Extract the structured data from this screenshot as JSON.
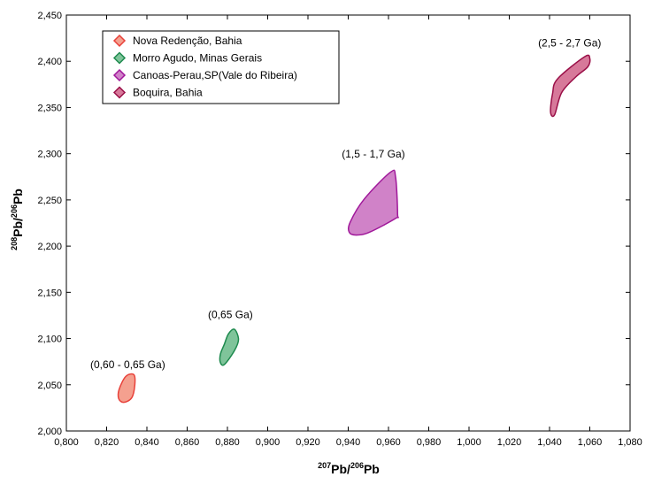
{
  "chart_data": {
    "type": "scatter",
    "x_axis": {
      "title_parts": [
        "207",
        "Pb/",
        "206",
        "Pb"
      ],
      "min": 0.8,
      "max": 1.08,
      "step": 0.02,
      "tick_labels": [
        "0,800",
        "0,820",
        "0,840",
        "0,860",
        "0,880",
        "0,900",
        "0,920",
        "0,940",
        "0,960",
        "0,980",
        "1,000",
        "1,020",
        "1,040",
        "1,060",
        "1,080"
      ]
    },
    "y_axis": {
      "title_parts": [
        "208",
        "Pb/",
        "206",
        "Pb"
      ],
      "min": 2.0,
      "max": 2.45,
      "step": 0.05,
      "tick_labels": [
        "2,000",
        "2,050",
        "2,100",
        "2,150",
        "2,200",
        "2,250",
        "2,300",
        "2,350",
        "2,400",
        "2,450"
      ]
    },
    "grid": false,
    "legend": {
      "placement": "top-left",
      "entries": [
        {
          "name": "Nova Redenção, Bahia",
          "color": "#e8413a",
          "fill": "#f4a08f"
        },
        {
          "name": "Morro Agudo, Minas Gerais",
          "color": "#1e8a4e",
          "fill": "#7fc49a"
        },
        {
          "name": "Canoas-Perau,SP(Vale do Ribeira)",
          "color": "#a0189a",
          "fill": "#d082c8"
        },
        {
          "name": "Boquira, Bahia",
          "color": "#9a1048",
          "fill": "#d7799a"
        }
      ]
    },
    "series": [
      {
        "name": "Nova Redenção, Bahia",
        "label": "(0,60 - 0,65 Ga)",
        "label_at": [
          0.8305,
          2.068
        ],
        "outline": [
          [
            0.8295,
            2.059
          ],
          [
            0.8335,
            2.061
          ],
          [
            0.834,
            2.05
          ],
          [
            0.8325,
            2.036
          ],
          [
            0.8285,
            2.031
          ],
          [
            0.826,
            2.035
          ],
          [
            0.8262,
            2.045
          ]
        ]
      },
      {
        "name": "Morro Agudo, Minas Gerais",
        "label": "(0,65 Ga)",
        "label_at": [
          0.8815,
          2.122
        ],
        "outline": [
          [
            0.8805,
            2.105
          ],
          [
            0.8835,
            2.11
          ],
          [
            0.8855,
            2.099
          ],
          [
            0.8835,
            2.087
          ],
          [
            0.8785,
            2.072
          ],
          [
            0.8765,
            2.074
          ],
          [
            0.8765,
            2.083
          ],
          [
            0.8785,
            2.094
          ]
        ]
      },
      {
        "name": "Canoas-Perau,SP(Vale do Ribeira)",
        "label": "(1,5 - 1,7 Ga)",
        "label_at": [
          0.9525,
          2.296
        ],
        "outline": [
          [
            0.948,
            2.251
          ],
          [
            0.961,
            2.28
          ],
          [
            0.9635,
            2.275
          ],
          [
            0.9645,
            2.235
          ],
          [
            0.9635,
            2.23
          ],
          [
            0.9505,
            2.215
          ],
          [
            0.944,
            2.212
          ],
          [
            0.9405,
            2.215
          ],
          [
            0.941,
            2.226
          ]
        ]
      },
      {
        "name": "Boquira, Bahia",
        "label": "(2,5 - 2,7 Ga)",
        "label_at": [
          1.05,
          2.416
        ],
        "outline": [
          [
            1.044,
            2.381
          ],
          [
            1.0575,
            2.405
          ],
          [
            1.06,
            2.403
          ],
          [
            1.059,
            2.394
          ],
          [
            1.053,
            2.383
          ],
          [
            1.046,
            2.366
          ],
          [
            1.0425,
            2.342
          ],
          [
            1.0405,
            2.345
          ],
          [
            1.0415,
            2.365
          ]
        ]
      }
    ]
  }
}
